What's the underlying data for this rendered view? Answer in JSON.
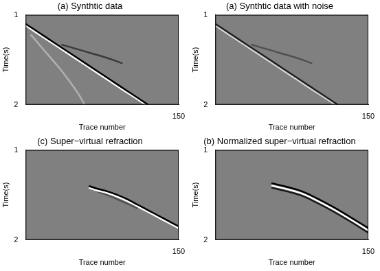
{
  "chart_data": [
    {
      "type": "line",
      "title": "(a) Synthtic data",
      "x_label": "Trace number",
      "y_label": "Time(s)",
      "xlim": [
        0,
        150
      ],
      "xticks": [
        150
      ],
      "ylim": [
        1,
        2
      ],
      "yticks": [
        1,
        2
      ],
      "grid": false,
      "series": [
        {
          "color": "#b0b0b0",
          "x": [
            5,
            20,
            35,
            50,
            58
          ],
          "values": [
            1.22,
            1.42,
            1.62,
            1.85,
            2.0
          ]
        },
        {
          "color": "#3a3a3a",
          "x": [
            35,
            50,
            65,
            80,
            95
          ],
          "values": [
            1.33,
            1.38,
            1.43,
            1.48,
            1.54
          ]
        },
        {
          "color": "#000000",
          "x": [
            0,
            20,
            40,
            60,
            80,
            100,
            120
          ],
          "values": [
            1.1,
            1.25,
            1.4,
            1.55,
            1.7,
            1.85,
            2.0
          ]
        },
        {
          "color": "#ffffff",
          "x": [
            0,
            20,
            40,
            60,
            80,
            100,
            118
          ],
          "values": [
            1.12,
            1.27,
            1.42,
            1.57,
            1.72,
            1.87,
            2.0
          ]
        }
      ]
    },
    {
      "type": "line",
      "title": "(a) Synthtic data with noise",
      "x_label": "Trace number",
      "y_label": "Time(s)",
      "xlim": [
        0,
        150
      ],
      "xticks": [
        150
      ],
      "ylim": [
        1,
        2
      ],
      "yticks": [
        1,
        2
      ],
      "grid": false,
      "series": [
        {
          "color": "#505050",
          "x": [
            35,
            50,
            65,
            80,
            95
          ],
          "values": [
            1.33,
            1.38,
            1.43,
            1.48,
            1.54
          ]
        },
        {
          "color": "#202020",
          "x": [
            0,
            20,
            40,
            60,
            80,
            100,
            120
          ],
          "values": [
            1.1,
            1.25,
            1.4,
            1.55,
            1.7,
            1.85,
            2.0
          ]
        },
        {
          "color": "#d8d8d8",
          "x": [
            0,
            20,
            40,
            60,
            80,
            100,
            118
          ],
          "values": [
            1.12,
            1.27,
            1.42,
            1.57,
            1.72,
            1.87,
            2.0
          ]
        }
      ]
    },
    {
      "type": "line",
      "title": "(c) Super−virtual refraction",
      "x_label": "Trace number",
      "y_label": "Time(s)",
      "xlim": [
        0,
        150
      ],
      "xticks": [
        150
      ],
      "ylim": [
        1,
        2
      ],
      "yticks": [
        1,
        2
      ],
      "grid": false,
      "series": [
        {
          "color": "#000000",
          "x": [
            62,
            70,
            80,
            90,
            100,
            110,
            120,
            135,
            150
          ],
          "values": [
            1.4,
            1.43,
            1.46,
            1.5,
            1.55,
            1.61,
            1.67,
            1.76,
            1.85
          ]
        },
        {
          "color": "#ffffff",
          "x": [
            62,
            70,
            80,
            90,
            100,
            110,
            120,
            135,
            150
          ],
          "values": [
            1.42,
            1.45,
            1.48,
            1.52,
            1.57,
            1.63,
            1.69,
            1.78,
            1.87
          ]
        },
        {
          "color": "#505050",
          "x": [
            70,
            80,
            90,
            100,
            110
          ],
          "values": [
            1.46,
            1.5,
            1.55,
            1.6,
            1.65
          ]
        }
      ]
    },
    {
      "type": "line",
      "title": "(b) Normalized super−virtual refraction",
      "x_label": "Trace number",
      "y_label": "Time(s)",
      "xlim": [
        0,
        150
      ],
      "xticks": [
        150
      ],
      "ylim": [
        1,
        2
      ],
      "yticks": [
        1,
        2
      ],
      "grid": false,
      "series": [
        {
          "color": "#000000",
          "x": [
            55,
            70,
            85,
            100,
            115,
            130,
            150
          ],
          "values": [
            1.37,
            1.41,
            1.46,
            1.54,
            1.63,
            1.73,
            1.87
          ]
        },
        {
          "color": "#ffffff",
          "x": [
            55,
            70,
            85,
            100,
            115,
            130,
            150
          ],
          "values": [
            1.395,
            1.435,
            1.485,
            1.565,
            1.655,
            1.755,
            1.895
          ]
        },
        {
          "color": "#1a1a1a",
          "x": [
            55,
            70,
            85,
            100,
            115,
            130,
            150
          ],
          "values": [
            1.42,
            1.46,
            1.51,
            1.59,
            1.68,
            1.78,
            1.92
          ]
        }
      ]
    }
  ]
}
